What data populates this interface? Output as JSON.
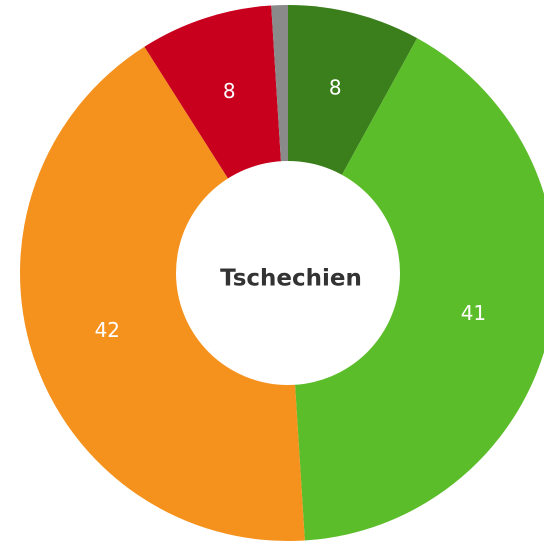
{
  "chart_data": {
    "type": "donut",
    "title": "Tschechien",
    "values": [
      8,
      41,
      42,
      8,
      1
    ],
    "colors": [
      "#3a7f1c",
      "#5cbd2a",
      "#f5921e",
      "#c8001e",
      "#8a8a8a"
    ]
  }
}
